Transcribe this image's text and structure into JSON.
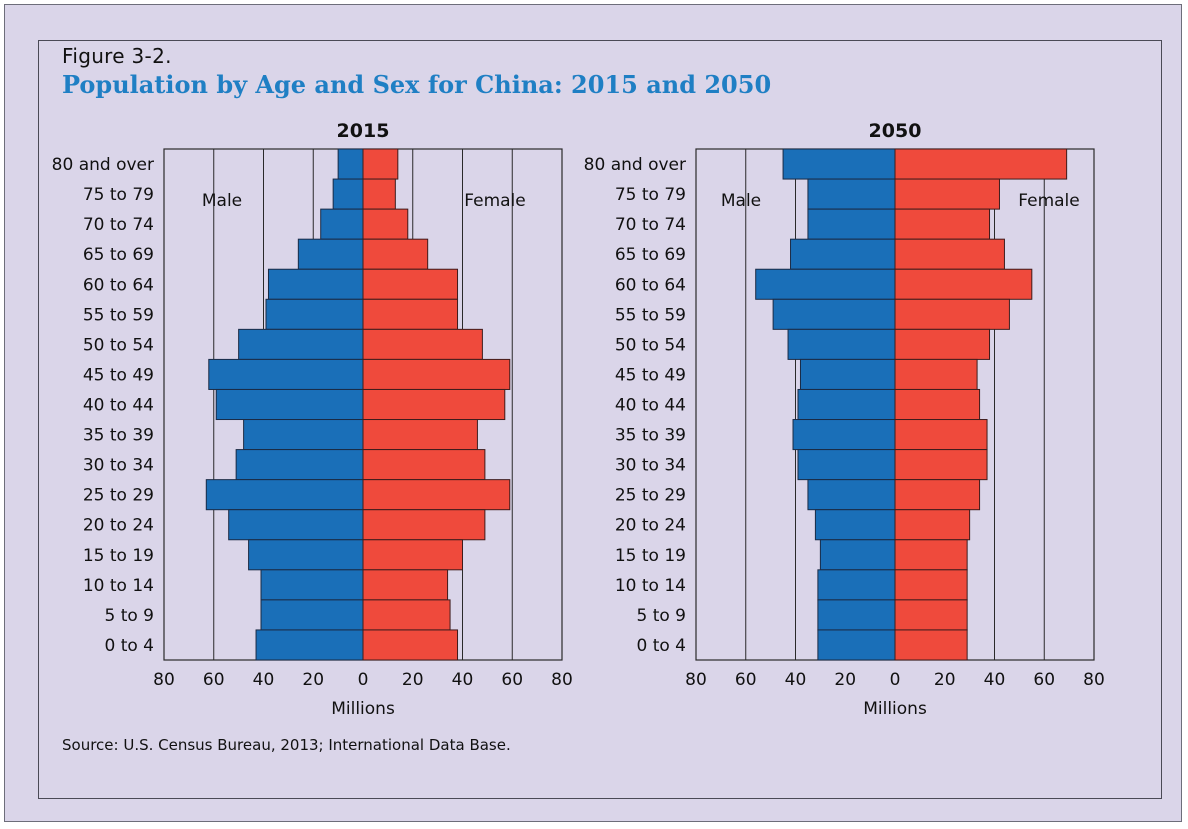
{
  "figure": {
    "label": "Figure 3-2.",
    "title": "Population by Age and Sex for China: 2015 and 2050",
    "source": "Source: U.S. Census Bureau, 2013; International Data Base."
  },
  "colors": {
    "male": "#1a6fb8",
    "female": "#ef4a3c",
    "title": "#1f7fc4",
    "panel": "#dad5e9"
  },
  "chart_data": [
    {
      "type": "bar",
      "orientation": "horizontal-pyramid",
      "title": "2015",
      "xlabel": "Millions",
      "xlim": [
        -80,
        80
      ],
      "xticks": [
        80,
        60,
        40,
        20,
        0,
        20,
        40,
        60,
        80
      ],
      "grid": true,
      "categories": [
        "80 and over",
        "75 to 79",
        "70 to 74",
        "65 to 69",
        "60 to 64",
        "55 to 59",
        "50 to 54",
        "45 to 49",
        "40 to 44",
        "35 to 39",
        "30 to 34",
        "25 to 29",
        "20 to 24",
        "15 to 19",
        "10 to 14",
        "5 to 9",
        "0 to 4"
      ],
      "series": [
        {
          "name": "Male",
          "values": [
            10,
            12,
            17,
            26,
            38,
            39,
            50,
            62,
            59,
            48,
            51,
            63,
            54,
            46,
            41,
            41,
            43
          ]
        },
        {
          "name": "Female",
          "values": [
            14,
            13,
            18,
            26,
            38,
            38,
            48,
            59,
            57,
            46,
            49,
            59,
            49,
            40,
            34,
            35,
            38
          ]
        }
      ]
    },
    {
      "type": "bar",
      "orientation": "horizontal-pyramid",
      "title": "2050",
      "xlabel": "Millions",
      "xlim": [
        -80,
        80
      ],
      "xticks": [
        80,
        60,
        40,
        20,
        0,
        20,
        40,
        60,
        80
      ],
      "grid": true,
      "categories": [
        "80 and over",
        "75 to 79",
        "70 to 74",
        "65 to 69",
        "60 to 64",
        "55 to 59",
        "50 to 54",
        "45 to 49",
        "40 to 44",
        "35 to 39",
        "30 to 34",
        "25 to 29",
        "20 to 24",
        "15 to 19",
        "10 to 14",
        "5 to 9",
        "0 to 4"
      ],
      "series": [
        {
          "name": "Male",
          "values": [
            45,
            35,
            35,
            42,
            56,
            49,
            43,
            38,
            39,
            41,
            39,
            35,
            32,
            30,
            31,
            31,
            31
          ]
        },
        {
          "name": "Female",
          "values": [
            69,
            42,
            38,
            44,
            55,
            46,
            38,
            33,
            34,
            37,
            37,
            34,
            30,
            29,
            29,
            29,
            29
          ]
        }
      ]
    }
  ]
}
